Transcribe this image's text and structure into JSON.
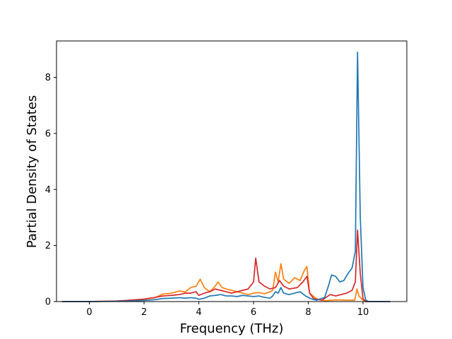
{
  "chart_data": {
    "type": "line",
    "title": "",
    "xlabel": "Frequency (THz)",
    "ylabel": "Partial Density of States",
    "xlim": [
      -1.2,
      11.6
    ],
    "ylim": [
      0,
      9.3
    ],
    "xticks": [
      "0",
      "2",
      "4",
      "6",
      "8",
      "10"
    ],
    "yticks": [
      "0",
      "2",
      "4",
      "6",
      "8"
    ],
    "xtick_values": [
      0,
      2,
      4,
      6,
      8,
      10
    ],
    "ytick_values": [
      0,
      2,
      4,
      6,
      8
    ],
    "grid": false,
    "legend": false,
    "series": [
      {
        "color": "#ff7f0e",
        "points": [
          [
            -1,
            0
          ],
          [
            0,
            0
          ],
          [
            0.5,
            0.01
          ],
          [
            1,
            0.02
          ],
          [
            1.5,
            0.04
          ],
          [
            2,
            0.08
          ],
          [
            2.4,
            0.14
          ],
          [
            2.7,
            0.27
          ],
          [
            3,
            0.3
          ],
          [
            3.3,
            0.38
          ],
          [
            3.5,
            0.34
          ],
          [
            3.7,
            0.5
          ],
          [
            3.9,
            0.55
          ],
          [
            4.05,
            0.8
          ],
          [
            4.2,
            0.5
          ],
          [
            4.4,
            0.35
          ],
          [
            4.6,
            0.55
          ],
          [
            4.7,
            0.7
          ],
          [
            4.85,
            0.5
          ],
          [
            5,
            0.45
          ],
          [
            5.2,
            0.4
          ],
          [
            5.4,
            0.35
          ],
          [
            5.6,
            0.3
          ],
          [
            5.8,
            0.25
          ],
          [
            6,
            0.3
          ],
          [
            6.2,
            0.32
          ],
          [
            6.4,
            0.28
          ],
          [
            6.6,
            0.35
          ],
          [
            6.7,
            0.4
          ],
          [
            6.8,
            1.05
          ],
          [
            6.9,
            0.7
          ],
          [
            7.0,
            1.35
          ],
          [
            7.1,
            0.8
          ],
          [
            7.3,
            0.65
          ],
          [
            7.5,
            0.85
          ],
          [
            7.7,
            0.75
          ],
          [
            7.85,
            1.1
          ],
          [
            7.95,
            1.25
          ],
          [
            8.05,
            0.3
          ],
          [
            8.3,
            0.1
          ],
          [
            8.6,
            0.03
          ],
          [
            9.0,
            0.06
          ],
          [
            9.4,
            0.05
          ],
          [
            9.7,
            0.05
          ],
          [
            9.78,
            0.45
          ],
          [
            9.85,
            0.2
          ],
          [
            10,
            0.05
          ],
          [
            10.1,
            0
          ],
          [
            11,
            0
          ]
        ]
      },
      {
        "color": "#d62728",
        "points": [
          [
            -1,
            0
          ],
          [
            0,
            0
          ],
          [
            0.5,
            0.01
          ],
          [
            1,
            0.02
          ],
          [
            1.5,
            0.05
          ],
          [
            2,
            0.09
          ],
          [
            2.4,
            0.15
          ],
          [
            2.7,
            0.2
          ],
          [
            3,
            0.22
          ],
          [
            3.3,
            0.25
          ],
          [
            3.5,
            0.3
          ],
          [
            3.7,
            0.3
          ],
          [
            3.9,
            0.35
          ],
          [
            4,
            0.22
          ],
          [
            4.2,
            0.3
          ],
          [
            4.4,
            0.35
          ],
          [
            4.6,
            0.45
          ],
          [
            4.8,
            0.4
          ],
          [
            5,
            0.35
          ],
          [
            5.2,
            0.3
          ],
          [
            5.4,
            0.35
          ],
          [
            5.6,
            0.4
          ],
          [
            5.8,
            0.45
          ],
          [
            6.0,
            0.7
          ],
          [
            6.08,
            1.55
          ],
          [
            6.2,
            0.7
          ],
          [
            6.4,
            0.55
          ],
          [
            6.6,
            0.45
          ],
          [
            6.8,
            0.5
          ],
          [
            6.95,
            0.75
          ],
          [
            7.1,
            0.55
          ],
          [
            7.3,
            0.45
          ],
          [
            7.6,
            0.5
          ],
          [
            7.8,
            0.7
          ],
          [
            7.95,
            0.9
          ],
          [
            8.05,
            0.3
          ],
          [
            8.2,
            0.1
          ],
          [
            8.5,
            0.05
          ],
          [
            8.8,
            0.25
          ],
          [
            9.0,
            0.2
          ],
          [
            9.2,
            0.25
          ],
          [
            9.4,
            0.3
          ],
          [
            9.6,
            0.4
          ],
          [
            9.72,
            0.7
          ],
          [
            9.8,
            2.55
          ],
          [
            9.9,
            1.0
          ],
          [
            10.0,
            0.1
          ],
          [
            10.1,
            0
          ],
          [
            11,
            0
          ]
        ]
      },
      {
        "color": "#1f77b4",
        "points": [
          [
            -1,
            0
          ],
          [
            0,
            0
          ],
          [
            0.5,
            0.005
          ],
          [
            1,
            0.01
          ],
          [
            1.5,
            0.02
          ],
          [
            2,
            0.04
          ],
          [
            2.4,
            0.07
          ],
          [
            2.7,
            0.11
          ],
          [
            3,
            0.12
          ],
          [
            3.3,
            0.14
          ],
          [
            3.5,
            0.12
          ],
          [
            3.7,
            0.14
          ],
          [
            3.9,
            0.12
          ],
          [
            4.0,
            0.08
          ],
          [
            4.2,
            0.12
          ],
          [
            4.4,
            0.2
          ],
          [
            4.6,
            0.22
          ],
          [
            4.8,
            0.25
          ],
          [
            5,
            0.2
          ],
          [
            5.2,
            0.2
          ],
          [
            5.4,
            0.18
          ],
          [
            5.6,
            0.22
          ],
          [
            5.8,
            0.2
          ],
          [
            6.0,
            0.18
          ],
          [
            6.2,
            0.2
          ],
          [
            6.4,
            0.15
          ],
          [
            6.6,
            0.12
          ],
          [
            6.7,
            0.2
          ],
          [
            6.8,
            0.35
          ],
          [
            6.9,
            0.3
          ],
          [
            7.0,
            0.5
          ],
          [
            7.1,
            0.3
          ],
          [
            7.3,
            0.25
          ],
          [
            7.5,
            0.3
          ],
          [
            7.7,
            0.35
          ],
          [
            7.9,
            0.2
          ],
          [
            8.1,
            0.1
          ],
          [
            8.3,
            0.05
          ],
          [
            8.6,
            0.15
          ],
          [
            8.75,
            0.6
          ],
          [
            8.85,
            0.95
          ],
          [
            9.0,
            0.9
          ],
          [
            9.15,
            0.7
          ],
          [
            9.3,
            0.75
          ],
          [
            9.45,
            1.0
          ],
          [
            9.6,
            1.2
          ],
          [
            9.72,
            1.8
          ],
          [
            9.8,
            8.9
          ],
          [
            9.9,
            3.0
          ],
          [
            10.0,
            0.5
          ],
          [
            10.1,
            0.05
          ],
          [
            10.2,
            0
          ],
          [
            11,
            0
          ]
        ]
      }
    ]
  }
}
